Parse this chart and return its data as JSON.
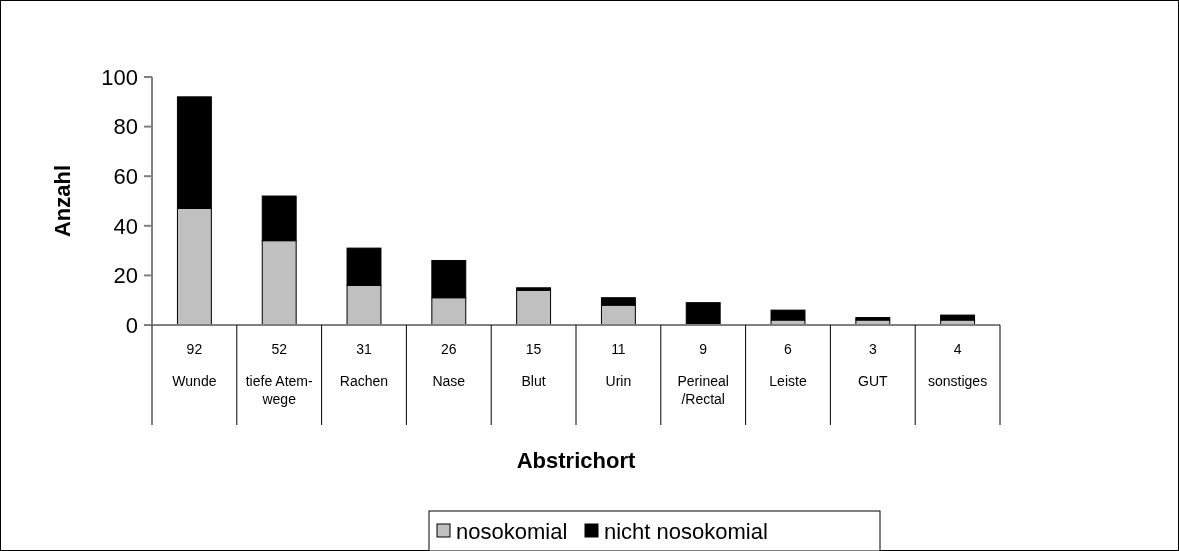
{
  "chart_data": {
    "type": "bar",
    "stacked": true,
    "xlabel": "Abstrichort",
    "ylabel": "Anzahl",
    "categories": [
      "Wunde",
      "tiefe Atem-\nwege",
      "Rachen",
      "Nase",
      "Blut",
      "Urin",
      "Perineal\n/Rectal",
      "Leiste",
      "GUT",
      "sonstiges"
    ],
    "series": [
      {
        "name": "nosokomial",
        "color": "#c0c0c0",
        "values": [
          47,
          34,
          16,
          11,
          14,
          8,
          0,
          2,
          2,
          2
        ]
      },
      {
        "name": "nicht nosokomial",
        "color": "#000000",
        "values": [
          45,
          18,
          15,
          15,
          1,
          3,
          9,
          4,
          1,
          2
        ]
      }
    ],
    "totals": [
      "92",
      "52",
      "31",
      "26",
      "15",
      "11",
      "9",
      "6",
      "3",
      "4"
    ],
    "ylim": [
      0,
      100
    ],
    "yticks": [
      0,
      20,
      40,
      60,
      80,
      100
    ],
    "grid": false,
    "legend": "bottom"
  }
}
